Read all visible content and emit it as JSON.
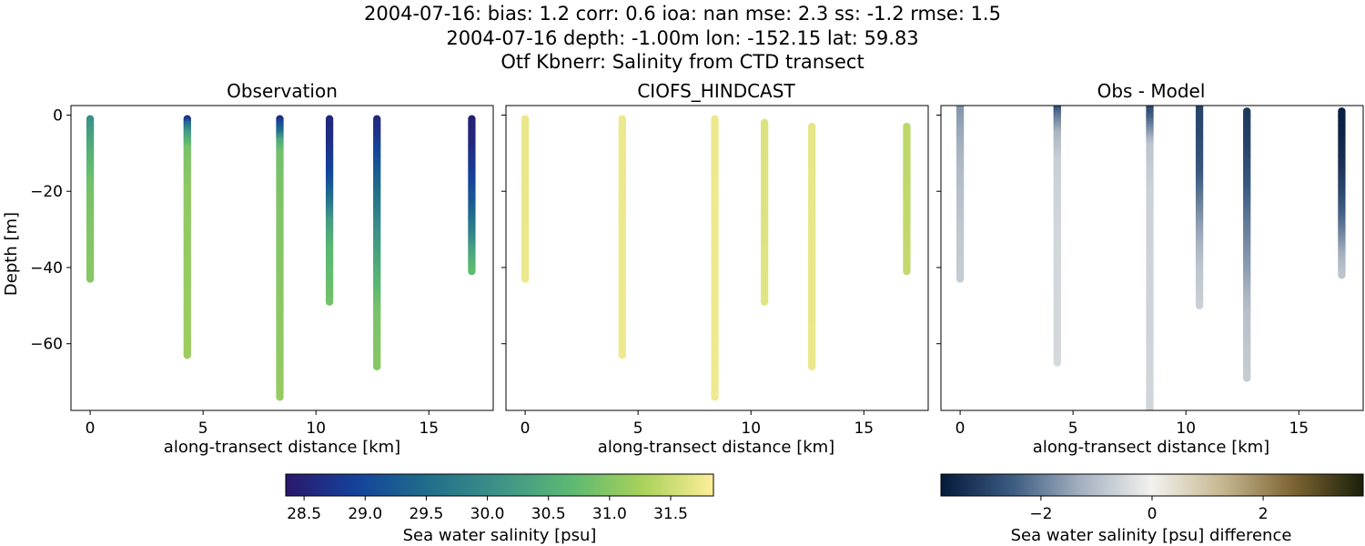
{
  "figure": {
    "title_lines": [
      "2004-07-16: bias: 1.2  corr: 0.6  ioa: nan  mse: 2.3  ss: -1.2  rmse: 1.5",
      "2004-07-16 depth: -1.00m lon: -152.15 lat: 59.83",
      "Otf Kbnerr: Salinity from CTD transect"
    ]
  },
  "chart_data": [
    {
      "type": "scatter",
      "title": "Observation",
      "xlabel": "along-transect distance [km]",
      "ylabel": "Depth [m]",
      "xlim": [
        -0.85,
        17.85
      ],
      "ylim": [
        -77.5,
        2.5
      ],
      "xticks": [
        0,
        5,
        10,
        15
      ],
      "yticks": [
        0,
        -20,
        -40,
        -60
      ],
      "ytick_labels": [
        "0",
        "−20",
        "−40",
        "−60"
      ],
      "show_yticklabels": true,
      "colormap": "haline",
      "color_range": [
        28.5,
        31.85
      ],
      "grid": false,
      "casts": [
        {
          "x": 0.0,
          "top": -1.0,
          "bottom": -43,
          "profile": [
            [
              -1,
              30.1
            ],
            [
              -4,
              30.3
            ],
            [
              -10,
              30.6
            ],
            [
              -18,
              30.9
            ],
            [
              -30,
              31.0
            ],
            [
              -43,
              31.05
            ]
          ]
        },
        {
          "x": 4.3,
          "top": -1.0,
          "bottom": -63,
          "profile": [
            [
              -1,
              28.7
            ],
            [
              -2.5,
              29.6
            ],
            [
              -5,
              30.3
            ],
            [
              -9,
              30.95
            ],
            [
              -20,
              31.1
            ],
            [
              -63,
              31.2
            ]
          ]
        },
        {
          "x": 8.4,
          "top": -1.0,
          "bottom": -74,
          "profile": [
            [
              -1,
              28.7
            ],
            [
              -2.5,
              29.2
            ],
            [
              -4.5,
              29.6
            ],
            [
              -7,
              30.5
            ],
            [
              -10,
              30.9
            ],
            [
              -25,
              31.0
            ],
            [
              -74,
              31.15
            ]
          ]
        },
        {
          "x": 10.6,
          "top": -1.0,
          "bottom": -49,
          "profile": [
            [
              -1,
              28.7
            ],
            [
              -8,
              28.8
            ],
            [
              -16,
              29.1
            ],
            [
              -22,
              29.6
            ],
            [
              -28,
              30.3
            ],
            [
              -35,
              30.7
            ],
            [
              -49,
              30.9
            ]
          ]
        },
        {
          "x": 12.7,
          "top": -1.0,
          "bottom": -66,
          "profile": [
            [
              -1,
              28.7
            ],
            [
              -6,
              28.9
            ],
            [
              -14,
              29.3
            ],
            [
              -22,
              29.7
            ],
            [
              -32,
              30.2
            ],
            [
              -42,
              30.6
            ],
            [
              -52,
              30.95
            ],
            [
              -66,
              31.05
            ]
          ]
        },
        {
          "x": 16.9,
          "top": -1.0,
          "bottom": -41,
          "profile": [
            [
              -1,
              28.6
            ],
            [
              -8,
              28.7
            ],
            [
              -16,
              29.0
            ],
            [
              -24,
              29.4
            ],
            [
              -31,
              29.9
            ],
            [
              -36,
              30.4
            ],
            [
              -41,
              30.75
            ]
          ]
        }
      ]
    },
    {
      "type": "scatter",
      "title": "CIOFS_HINDCAST",
      "xlabel": "along-transect distance [km]",
      "ylabel": "",
      "xlim": [
        -0.85,
        17.85
      ],
      "ylim": [
        -77.5,
        2.5
      ],
      "xticks": [
        0,
        5,
        10,
        15
      ],
      "yticks": [
        0,
        -20,
        -40,
        -60
      ],
      "show_yticklabels": false,
      "colormap": "haline",
      "color_range": [
        28.5,
        31.85
      ],
      "grid": false,
      "casts": [
        {
          "x": 0.0,
          "top": -1.0,
          "bottom": -43,
          "profile": [
            [
              -1,
              31.72
            ],
            [
              -43,
              31.74
            ]
          ]
        },
        {
          "x": 4.3,
          "top": -1.0,
          "bottom": -63,
          "profile": [
            [
              -1,
              31.74
            ],
            [
              -63,
              31.75
            ]
          ]
        },
        {
          "x": 8.4,
          "top": -1.0,
          "bottom": -74,
          "profile": [
            [
              -1,
              31.74
            ],
            [
              -74,
              31.76
            ]
          ]
        },
        {
          "x": 10.6,
          "top": -2.0,
          "bottom": -49,
          "profile": [
            [
              -2,
              31.62
            ],
            [
              -49,
              31.66
            ]
          ]
        },
        {
          "x": 12.7,
          "top": -3.0,
          "bottom": -66,
          "profile": [
            [
              -3,
              31.7
            ],
            [
              -66,
              31.73
            ]
          ]
        },
        {
          "x": 16.9,
          "top": -3.0,
          "bottom": -41,
          "profile": [
            [
              -3,
              31.42
            ],
            [
              -41,
              31.46
            ]
          ]
        }
      ]
    },
    {
      "type": "scatter",
      "title": "Obs - Model",
      "xlabel": "along-transect distance [km]",
      "ylabel": "",
      "xlim": [
        -0.85,
        17.85
      ],
      "ylim": [
        -77.5,
        2.5
      ],
      "xticks": [
        0,
        5,
        10,
        15
      ],
      "yticks": [
        0,
        -20,
        -40,
        -60
      ],
      "show_yticklabels": false,
      "colormap": "diff",
      "color_range": [
        -3.8,
        3.8
      ],
      "grid": false,
      "casts": [
        {
          "x": 0.0,
          "top": 2.5,
          "bottom": -43,
          "profile": [
            [
              2.5,
              -1.7
            ],
            [
              -5,
              -1.4
            ],
            [
              -15,
              -1.1
            ],
            [
              -30,
              -0.85
            ],
            [
              -43,
              -0.75
            ]
          ]
        },
        {
          "x": 4.3,
          "top": 2.5,
          "bottom": -65,
          "profile": [
            [
              2.5,
              -3.0
            ],
            [
              0,
              -2.2
            ],
            [
              -5,
              -1.2
            ],
            [
              -12,
              -0.7
            ],
            [
              -30,
              -0.55
            ],
            [
              -65,
              -0.5
            ]
          ]
        },
        {
          "x": 8.4,
          "top": 2.5,
          "bottom": -80,
          "profile": [
            [
              2.5,
              -3.0
            ],
            [
              0,
              -2.6
            ],
            [
              -4,
              -1.8
            ],
            [
              -8,
              -0.9
            ],
            [
              -20,
              -0.65
            ],
            [
              -80,
              -0.55
            ]
          ]
        },
        {
          "x": 10.6,
          "top": 2.5,
          "bottom": -50,
          "profile": [
            [
              2.5,
              -3.0
            ],
            [
              -5,
              -2.85
            ],
            [
              -15,
              -2.6
            ],
            [
              -22,
              -2.1
            ],
            [
              -30,
              -1.5
            ],
            [
              -40,
              -0.9
            ],
            [
              -50,
              -0.7
            ]
          ]
        },
        {
          "x": 12.7,
          "top": 1.0,
          "bottom": -69,
          "profile": [
            [
              1,
              -3.2
            ],
            [
              -8,
              -3.0
            ],
            [
              -18,
              -2.6
            ],
            [
              -28,
              -2.1
            ],
            [
              -40,
              -1.6
            ],
            [
              -52,
              -1.0
            ],
            [
              -69,
              -0.75
            ]
          ]
        },
        {
          "x": 16.9,
          "top": 1.0,
          "bottom": -42,
          "profile": [
            [
              1,
              -3.7
            ],
            [
              -6,
              -3.6
            ],
            [
              -14,
              -3.3
            ],
            [
              -22,
              -2.8
            ],
            [
              -30,
              -2.1
            ],
            [
              -36,
              -1.4
            ],
            [
              -42,
              -0.9
            ]
          ]
        }
      ]
    }
  ],
  "colorbars": [
    {
      "label": "Sea water salinity [psu]",
      "colormap": "haline",
      "range": [
        28.35,
        31.85
      ],
      "ticks": [
        28.5,
        29.0,
        29.5,
        30.0,
        30.5,
        31.0,
        31.5
      ],
      "tick_labels": [
        "28.5",
        "29.0",
        "29.5",
        "30.0",
        "30.5",
        "31.0",
        "31.5"
      ]
    },
    {
      "label": "Sea water salinity [psu] difference",
      "colormap": "diff",
      "range": [
        -3.8,
        3.8
      ],
      "ticks": [
        -2,
        0,
        2
      ],
      "tick_labels": [
        "−2",
        "0",
        "2"
      ]
    }
  ],
  "colormaps": {
    "haline": [
      "#2a186c",
      "#14439c",
      "#206e8b",
      "#3d9387",
      "#5bb972",
      "#a9d15a",
      "#fdee99"
    ],
    "diff": [
      "#051a3b",
      "#3a5a80",
      "#a6b2c0",
      "#f2f2ee",
      "#c7b791",
      "#7d6532",
      "#1b1f0a"
    ]
  }
}
